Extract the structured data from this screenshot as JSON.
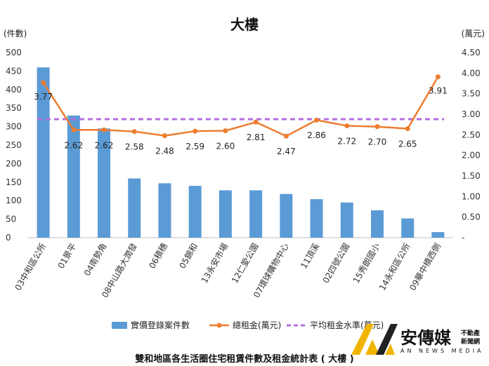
{
  "chart_data": {
    "type": "bar",
    "title": "大樓",
    "ylabel_left": "(件數)",
    "ylabel_right": "(萬元)",
    "categories": [
      "03中和區公所",
      "01景平",
      "04南勢角",
      "08中山路大潤發",
      "06積穗",
      "05錦和",
      "13永安市場",
      "12仁愛公園",
      "07環球購物中心",
      "11頂溪",
      "02四號公園",
      "15秀朗國小",
      "14永和區公所",
      "09華中橋西側"
    ],
    "highlight": {
      "03中和區公所": "#c00000",
      "07環球購物中心": "#2e7d32"
    },
    "series": [
      {
        "name": "實價登錄案件數",
        "kind": "bar",
        "axis": "left",
        "color": "#5b9bd5",
        "values": [
          460,
          330,
          295,
          160,
          147,
          140,
          128,
          128,
          118,
          104,
          95,
          74,
          52,
          15
        ]
      },
      {
        "name": "總租金(萬元)",
        "kind": "line",
        "axis": "right",
        "color": "#ed7d31",
        "values": [
          3.77,
          2.62,
          2.62,
          2.58,
          2.48,
          2.59,
          2.6,
          2.81,
          2.47,
          2.86,
          2.72,
          2.7,
          2.65,
          3.91
        ],
        "labels": [
          "3.77",
          "2.62",
          "2.62",
          "2.58",
          "2.48",
          "2.59",
          "2.60",
          "2.81",
          "2.47",
          "2.86",
          "2.72",
          "2.70",
          "2.65",
          "3.91"
        ]
      },
      {
        "name": "平均租金水準(萬元)",
        "kind": "line",
        "axis": "right",
        "color": "#b36ee0",
        "dashed": true,
        "values": [
          2.88,
          2.88,
          2.88,
          2.88,
          2.88,
          2.88,
          2.88,
          2.88,
          2.88,
          2.88,
          2.88,
          2.88,
          2.88,
          2.88
        ]
      }
    ],
    "ylim_left": [
      0,
      500
    ],
    "yticks_left": [
      "0",
      "50",
      "100",
      "150",
      "200",
      "250",
      "300",
      "350",
      "400",
      "450",
      "500"
    ],
    "ylim_right": [
      0,
      4.5
    ],
    "yticks_right": [
      "-",
      "0.50",
      "1.00",
      "1.50",
      "2.00",
      "2.50",
      "3.00",
      "3.50",
      "4.00",
      "4.50"
    ],
    "grid": false,
    "legend": "bottom"
  },
  "caption": "雙和地區各生活圈住宅租賃件數及租金統計表 ( 大樓 )",
  "brand": {
    "name": "安傳媒",
    "tag_line1": "不動產",
    "tag_line2": "新聞網",
    "english": "AN NEWS MEDIA",
    "colors": {
      "logo_gold": "#f0b400",
      "logo_dark": "#222222"
    }
  }
}
